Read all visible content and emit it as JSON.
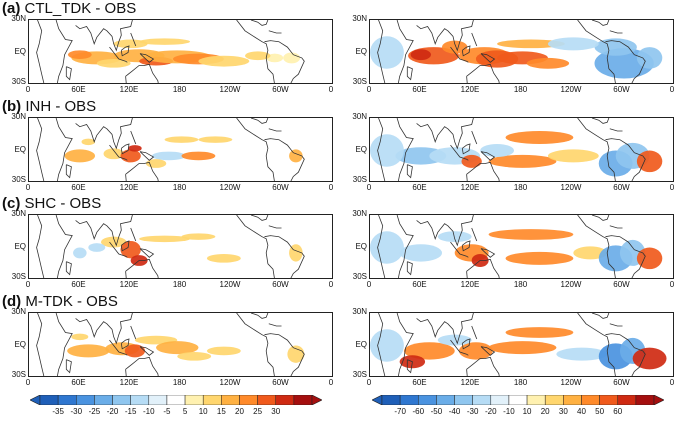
{
  "panels": [
    {
      "title_letter": "(a)",
      "title_text": "CTL_TDK - OBS"
    },
    {
      "title_letter": "(b)",
      "title_text": "INH - OBS"
    },
    {
      "title_letter": "(c)",
      "title_text": "SHC - OBS"
    },
    {
      "title_letter": "(d)",
      "title_text": "M-TDK - OBS"
    }
  ],
  "lat_labels": [
    "30N",
    "EQ",
    "30S"
  ],
  "lon_labels": [
    "0",
    "60E",
    "120E",
    "180",
    "120W",
    "60W",
    "0"
  ],
  "colorbar_left": {
    "labels": [
      "-35",
      "-30",
      "-25",
      "-20",
      "-15",
      "-10",
      "-5",
      "5",
      "10",
      "15",
      "20",
      "25",
      "30"
    ]
  },
  "colorbar_right": {
    "labels": [
      "-70",
      "-60",
      "-50",
      "-40",
      "-30",
      "-20",
      "-10",
      "10",
      "20",
      "30",
      "40",
      "50",
      "60"
    ]
  },
  "palette": [
    "#1f5fb8",
    "#2f77d0",
    "#4a93e0",
    "#6aade8",
    "#8fc6ef",
    "#b6dcf5",
    "#e2f1fa",
    "#ffffff",
    "#fff1b0",
    "#ffd66e",
    "#ffb142",
    "#ff8a2a",
    "#f05a1c",
    "#cf2a12",
    "#a50f0f"
  ]
}
